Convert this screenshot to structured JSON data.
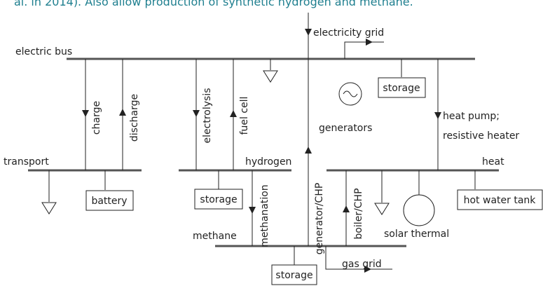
{
  "caption": "al. in 2014). Also allow production of synthetic hydrogen and methane.",
  "labels": {
    "electricity_grid": "electricity grid",
    "electric_bus": "electric bus",
    "charge": "charge",
    "discharge": "discharge",
    "electrolysis": "electrolysis",
    "fuel_cell": "fuel cell",
    "generators": "generators",
    "storage_electric": "storage",
    "heat_pump_1": "heat pump;",
    "heat_pump_2": "resistive heater",
    "transport": "transport",
    "hydrogen": "hydrogen",
    "heat": "heat",
    "battery": "battery",
    "storage_hydrogen": "storage",
    "methanation": "methanation",
    "generator_chp": "generator/CHP",
    "boiler_chp": "boiler/CHP",
    "hot_water_tank": "hot water tank",
    "solar_thermal": "solar thermal",
    "methane": "methane",
    "gas_grid": "gas grid",
    "storage_methane": "storage"
  }
}
